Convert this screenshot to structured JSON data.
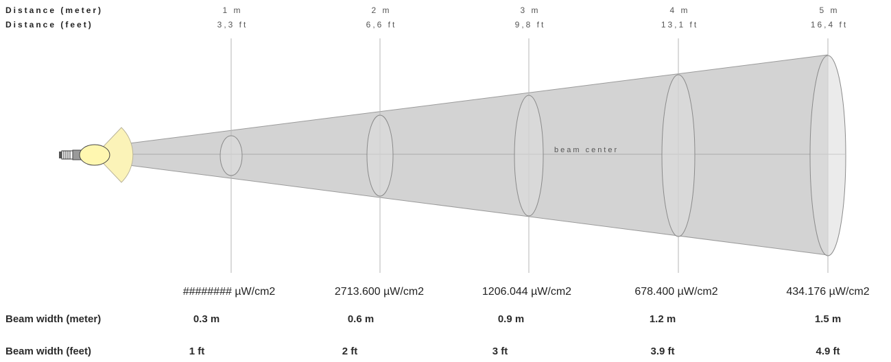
{
  "header": {
    "distance_meter_label": "Distance (meter)",
    "distance_feet_label": "Distance (feet)"
  },
  "distances": [
    {
      "meter": "1 m",
      "feet": "3,3 ft",
      "intensity": "######## µW/cm2",
      "width_m": "0.3 m",
      "width_ft": "1 ft"
    },
    {
      "meter": "2 m",
      "feet": "6,6 ft",
      "intensity": "2713.600 µW/cm2",
      "width_m": "0.6 m",
      "width_ft": "2 ft"
    },
    {
      "meter": "3 m",
      "feet": "9,8 ft",
      "intensity": "1206.044 µW/cm2",
      "width_m": "0.9 m",
      "width_ft": "3 ft"
    },
    {
      "meter": "4 m",
      "feet": "13,1 ft",
      "intensity": "678.400 µW/cm2",
      "width_m": "1.2 m",
      "width_ft": "3.9 ft"
    },
    {
      "meter": "5 m",
      "feet": "16,4 ft",
      "intensity": "434.176 µW/cm2",
      "width_m": "1.5 m",
      "width_ft": "4.9 ft"
    }
  ],
  "beam_center_label": "beam center",
  "rows": {
    "beam_width_meter_label": "Beam width (meter)",
    "beam_width_feet_label": "Beam width (feet)"
  },
  "colors": {
    "cone_fill": "#d3d3d3",
    "cone_stroke": "#9a9a9a",
    "ellipse_fill": "#dedede",
    "ellipse_stroke": "#8a8a8a",
    "grid_line": "#b5b5b5",
    "bulb_fill": "#fff7b0",
    "spread_fill": "#fbf3b8"
  }
}
